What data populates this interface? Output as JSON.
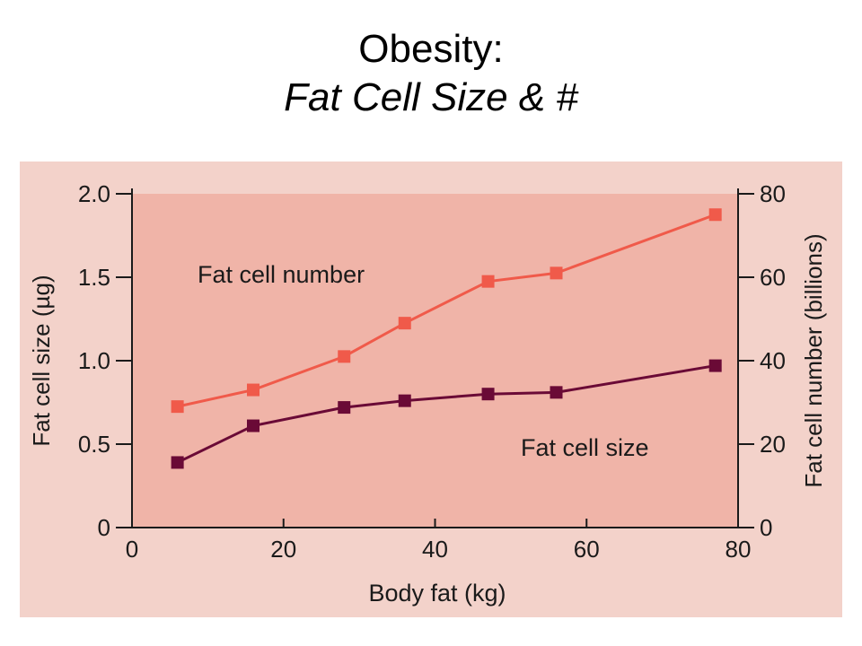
{
  "slide": {
    "title": "Obesity:",
    "subtitle": "Fat Cell Size & #"
  },
  "colors": {
    "background_panel": "#f3d2ca",
    "plot_area": "#f0b4a8",
    "fat_cell_number": "#f05a4a",
    "fat_cell_size": "#6a0a36",
    "axis": "#1a1a1a"
  },
  "chart_data": {
    "type": "line",
    "xlabel": "Body fat (kg)",
    "ylabel": "Fat cell size (µg)",
    "y2label": "Fat cell number (billions)",
    "xlim": [
      0,
      80
    ],
    "ylim": [
      0,
      2.0
    ],
    "y2lim": [
      0,
      80
    ],
    "x_ticks": [
      "0",
      "20",
      "40",
      "60",
      "80"
    ],
    "y_ticks": [
      "0",
      "0.5",
      "1.0",
      "1.5",
      "2.0"
    ],
    "y2_ticks": [
      "0",
      "20",
      "40",
      "60",
      "80"
    ],
    "grid": false,
    "series": [
      {
        "name": "Fat cell number",
        "axis": "right",
        "x": [
          6,
          16,
          28,
          36,
          47,
          56,
          77
        ],
        "y": [
          29,
          33,
          41,
          49,
          59,
          61,
          75
        ]
      },
      {
        "name": "Fat cell size",
        "axis": "left",
        "x": [
          6,
          16,
          28,
          36,
          47,
          56,
          77
        ],
        "y": [
          0.39,
          0.61,
          0.72,
          0.76,
          0.8,
          0.81,
          0.97
        ]
      }
    ]
  }
}
